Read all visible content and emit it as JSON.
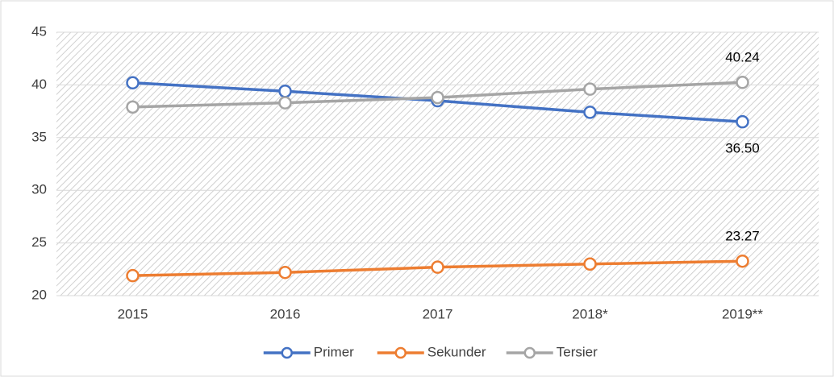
{
  "chart_data": {
    "type": "line",
    "categories": [
      "2015",
      "2016",
      "2017",
      "2018*",
      "2019**"
    ],
    "series": [
      {
        "name": "Primer",
        "color": "#4472c4",
        "values": [
          40.2,
          39.4,
          38.5,
          37.4,
          36.5
        ],
        "value_labels": [
          null,
          null,
          null,
          null,
          "36.50"
        ]
      },
      {
        "name": "Sekunder",
        "color": "#ed7d31",
        "values": [
          21.9,
          22.2,
          22.7,
          23.0,
          23.27
        ],
        "value_labels": [
          null,
          null,
          null,
          null,
          "23.27"
        ]
      },
      {
        "name": "Tersier",
        "color": "#a5a5a5",
        "values": [
          37.9,
          38.3,
          38.8,
          39.6,
          40.24
        ],
        "value_labels": [
          null,
          null,
          null,
          null,
          "40.24"
        ]
      }
    ],
    "ylim": [
      20,
      45
    ],
    "yticks": [
      20,
      25,
      30,
      35,
      40,
      45
    ],
    "grid": true,
    "legend": "bottom"
  }
}
